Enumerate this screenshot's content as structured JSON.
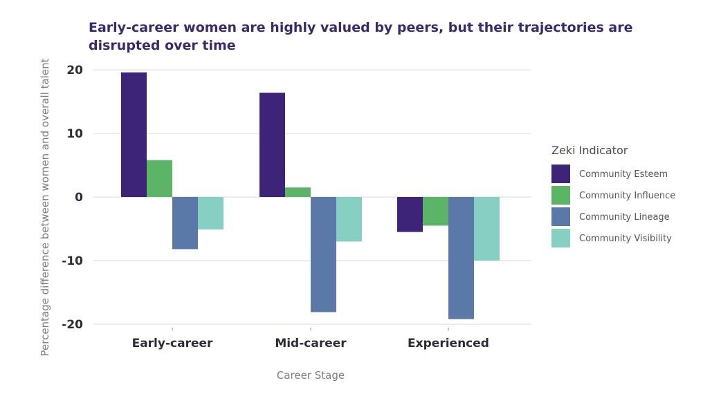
{
  "chart_data": {
    "type": "bar",
    "title_lines": [
      "Early-career women are highly valued by peers, but their trajectories are",
      "disrupted over time"
    ],
    "xlabel": "Career Stage",
    "ylabel": "Percentage difference between women and overall talent",
    "categories": [
      "Early-career",
      "Mid-career",
      "Experienced"
    ],
    "ylim": [
      -20,
      20
    ],
    "yticks": [
      20,
      10,
      0,
      -10,
      -20
    ],
    "grid": true,
    "legend_title": "Zeki Indicator",
    "legend_position": "right",
    "series": [
      {
        "name": "Community Esteem",
        "color": "#3d2478",
        "values": [
          19.6,
          16.4,
          -5.5
        ]
      },
      {
        "name": "Community Influence",
        "color": "#5cb567",
        "values": [
          5.8,
          1.5,
          -4.5
        ]
      },
      {
        "name": "Community Lineage",
        "color": "#5a79a8",
        "values": [
          -8.2,
          -18.1,
          -19.2
        ]
      },
      {
        "name": "Community Visibility",
        "color": "#86cfc2",
        "values": [
          -5.1,
          -7.0,
          -10.0
        ]
      }
    ]
  }
}
